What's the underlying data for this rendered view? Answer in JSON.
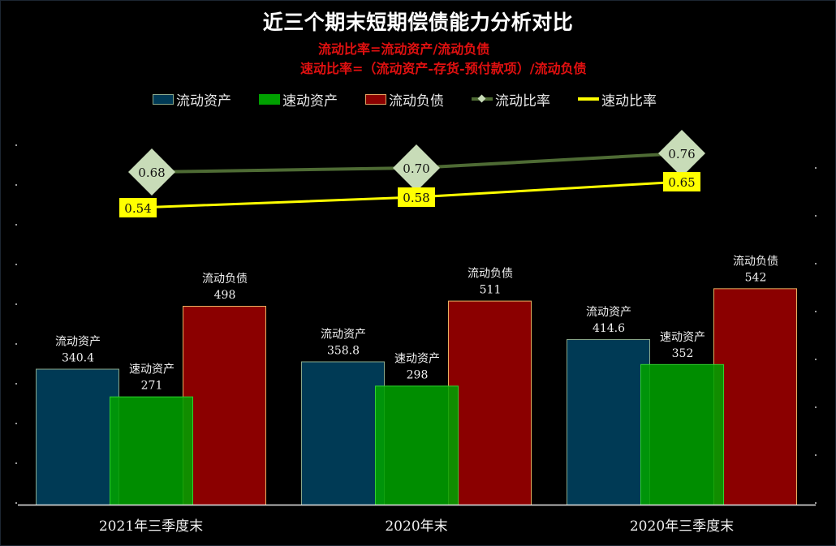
{
  "title": "近三个期末短期偿债能力分析对比",
  "formulas": [
    "流动比率=流动资产/流动负债",
    "速动比率=（流动资产-存货-预付款项）/流动负债"
  ],
  "colors": {
    "current_assets": "#003a55",
    "quick_assets": "#00a000",
    "current_liabilities": "#8b0000",
    "current_ratio_line": "#4e6b34",
    "current_ratio_marker": "#c8dcb8",
    "quick_ratio_line": "#ffff00",
    "formula_text": "#e01010"
  },
  "legend": [
    {
      "label": "流动资产",
      "kind": "bar",
      "color": "#003a55",
      "border": "#8aa88a"
    },
    {
      "label": "速动资产",
      "kind": "bar",
      "color": "#00a000",
      "border": "#00a000"
    },
    {
      "label": "流动负债",
      "kind": "bar",
      "color": "#8b0000",
      "border": "#e0a060"
    },
    {
      "label": "流动比率",
      "kind": "line-marker",
      "color": "#4e6b34",
      "marker": "#c8dcb8"
    },
    {
      "label": "速动比率",
      "kind": "line",
      "color": "#ffff00"
    }
  ],
  "chart_data": {
    "type": "bar+line",
    "title": "近三个期末短期偿债能力分析对比",
    "subtitle": "流动比率=流动资产/流动负债；速动比率=（流动资产-存货-预付款项）/流动负债",
    "categories": [
      "2021年三季度末",
      "2020年末",
      "2020年三季度末"
    ],
    "series": [
      {
        "name": "流动资产",
        "type": "bar",
        "values": [
          340.4,
          358.8,
          414.6
        ]
      },
      {
        "name": "速动资产",
        "type": "bar",
        "values": [
          271,
          298,
          352
        ]
      },
      {
        "name": "流动负债",
        "type": "bar",
        "values": [
          498,
          511,
          542
        ]
      },
      {
        "name": "流动比率",
        "type": "line",
        "axis": "secondary",
        "values": [
          0.68,
          0.7,
          0.76
        ]
      },
      {
        "name": "速动比率",
        "type": "line",
        "axis": "secondary",
        "values": [
          0.54,
          0.58,
          0.65
        ]
      }
    ],
    "value_labels": {
      "流动资产": [
        "340.4",
        "358.8",
        "414.6"
      ],
      "速动资产": [
        "271",
        "298",
        "352"
      ],
      "流动负债": [
        "498",
        "511",
        "542"
      ],
      "流动比率": [
        "0.68",
        "0.70",
        "0.76"
      ],
      "速动比率": [
        "0.54",
        "0.58",
        "0.65"
      ]
    },
    "xlabel": "",
    "ylabel": "",
    "ylim": [
      0,
      500
    ],
    "grid": false,
    "legend_position": "top"
  }
}
